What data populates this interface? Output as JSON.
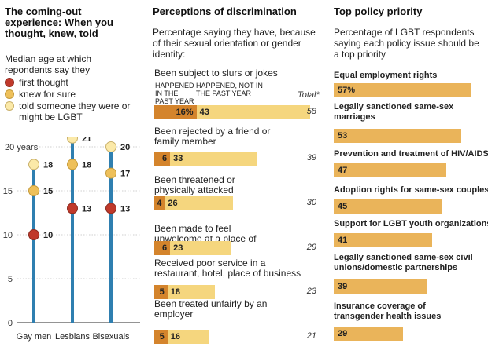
{
  "left": {
    "title": "The coming-out experience: When you thought, knew, told",
    "legend_intro": "Median age at which repondents say they",
    "legend": [
      {
        "label": "first thought",
        "color": "#c0392b"
      },
      {
        "label": "knew for sure",
        "color": "#eec05a"
      },
      {
        "label": "told someone they were or might be LGBT",
        "color": "#fbe9a8"
      }
    ],
    "y_unit_label": "20 years"
  },
  "middle": {
    "title": "Perceptions of discrimination",
    "description": "Percentage saying they have, because of their sexual orientation or gender identity:",
    "col_past": "HAPPENED IN THE PAST YEAR",
    "col_notpast": "HAPPENED, NOT IN THE PAST YEAR",
    "col_total": "Total*"
  },
  "right": {
    "title": "Top policy priority",
    "description": "Percentage of LGBT respondents saying each policy issue should be a top priority"
  },
  "chart_data": [
    {
      "type": "scatter",
      "title": "The coming-out experience: When you thought, knew, told",
      "categories": [
        "Gay men",
        "Lesbians",
        "Bisexuals"
      ],
      "ylim": [
        0,
        20
      ],
      "yticks": [
        0,
        5,
        10,
        15,
        20
      ],
      "series": [
        {
          "name": "first thought",
          "values": [
            10,
            13,
            13
          ],
          "color": "#c0392b"
        },
        {
          "name": "knew for sure",
          "values": [
            15,
            18,
            17
          ],
          "color": "#eec05a"
        },
        {
          "name": "told someone they were or might be LGBT",
          "values": [
            18,
            21,
            20
          ],
          "color": "#fbe9a8"
        }
      ]
    },
    {
      "type": "bar",
      "title": "Perceptions of discrimination",
      "categories": [
        "Been subject to slurs or jokes",
        "Been rejected by a friend or family member",
        "Been threatened or physically attacked",
        "Been made to feel unwelcome at a place of worship",
        "Received poor service in a restaurant, hotel, place of business",
        "Been treated unfairly by an employer"
      ],
      "series": [
        {
          "name": "HAPPENED IN THE PAST YEAR",
          "values": [
            16,
            6,
            4,
            6,
            5,
            5
          ],
          "color": "#d4842c"
        },
        {
          "name": "HAPPENED, NOT IN THE PAST YEAR",
          "values": [
            43,
            33,
            26,
            23,
            18,
            16
          ],
          "color": "#f5d67e"
        }
      ],
      "totals": [
        58,
        39,
        30,
        29,
        23,
        21
      ],
      "first_value_suffix": "%"
    },
    {
      "type": "bar",
      "title": "Top policy priority",
      "categories": [
        "Equal employment rights",
        "Legally sanctioned same-sex marriages",
        "Prevention and treatment of HIV/AIDS",
        "Adoption rights for same-sex couples",
        "Support for LGBT youth organizations",
        "Legally sanctioned same-sex civil unions/domestic partnerships",
        "Insurance coverage of transgender health issues"
      ],
      "values": [
        57,
        53,
        47,
        45,
        41,
        39,
        29
      ],
      "first_value_suffix": "%",
      "color": "#eab45a"
    }
  ]
}
